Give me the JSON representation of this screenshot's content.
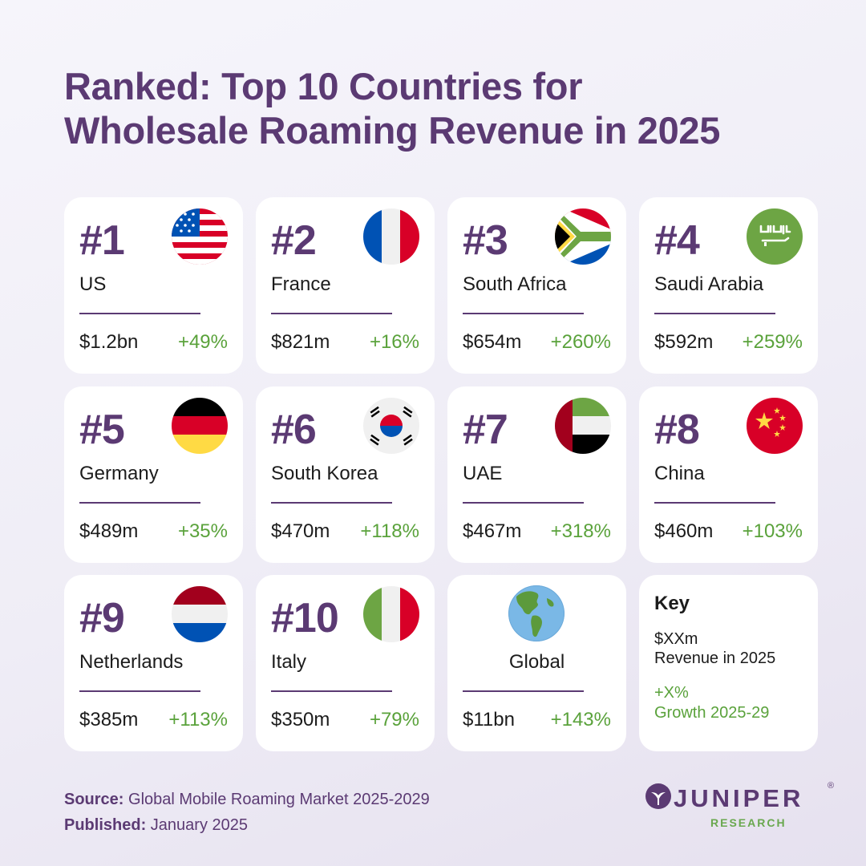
{
  "title": {
    "line1": "Ranked: Top 10 Countries for",
    "line2": "Wholesale Roaming Revenue in 2025"
  },
  "chart_data": {
    "type": "table",
    "title": "Ranked: Top 10 Countries for Wholesale Roaming Revenue in 2025",
    "columns": [
      "rank",
      "country",
      "revenue_2025",
      "growth_2025_29"
    ],
    "rows": [
      {
        "rank": "#1",
        "country": "US",
        "revenue": "$1.2bn",
        "growth": "+49%",
        "flag": "us-flag-icon"
      },
      {
        "rank": "#2",
        "country": "France",
        "revenue": "$821m",
        "growth": "+16%",
        "flag": "france-flag-icon"
      },
      {
        "rank": "#3",
        "country": "South Africa",
        "revenue": "$654m",
        "growth": "+260%",
        "flag": "south-africa-flag-icon"
      },
      {
        "rank": "#4",
        "country": "Saudi Arabia",
        "revenue": "$592m",
        "growth": "+259%",
        "flag": "saudi-arabia-flag-icon"
      },
      {
        "rank": "#5",
        "country": "Germany",
        "revenue": "$489m",
        "growth": "+35%",
        "flag": "germany-flag-icon"
      },
      {
        "rank": "#6",
        "country": "South Korea",
        "revenue": "$470m",
        "growth": "+118%",
        "flag": "south-korea-flag-icon"
      },
      {
        "rank": "#7",
        "country": "UAE",
        "revenue": "$467m",
        "growth": "+318%",
        "flag": "uae-flag-icon"
      },
      {
        "rank": "#8",
        "country": "China",
        "revenue": "$460m",
        "growth": "+103%",
        "flag": "china-flag-icon"
      },
      {
        "rank": "#9",
        "country": "Netherlands",
        "revenue": "$385m",
        "growth": "+113%",
        "flag": "netherlands-flag-icon"
      },
      {
        "rank": "#10",
        "country": "Italy",
        "revenue": "$350m",
        "growth": "+79%",
        "flag": "italy-flag-icon"
      }
    ],
    "global": {
      "label": "Global",
      "revenue": "$11bn",
      "growth": "+143%",
      "icon": "globe-icon"
    }
  },
  "key": {
    "title": "Key",
    "revenue_sample": "$XXm",
    "revenue_label": "Revenue in 2025",
    "growth_sample": "+X%",
    "growth_label": "Growth 2025-29"
  },
  "footer": {
    "source_label": "Source:",
    "source_value": "Global Mobile Roaming Market 2025-2029",
    "published_label": "Published:",
    "published_value": "January 2025"
  },
  "logo": {
    "name": "JUNIPER",
    "reg": "®",
    "sub": "RESEARCH"
  },
  "colors": {
    "brand_purple": "#5b3a73",
    "growth_green": "#5aa23b",
    "card_bg": "#ffffff"
  }
}
